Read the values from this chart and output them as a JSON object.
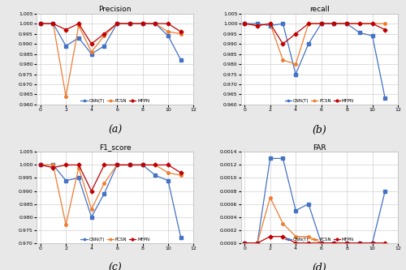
{
  "subplots": [
    {
      "title": "Precision",
      "label": "(a)",
      "ylim": [
        0.96,
        1.005
      ],
      "yticks": [
        0.96,
        0.965,
        0.97,
        0.975,
        0.98,
        0.985,
        0.99,
        0.995,
        1.0,
        1.005
      ],
      "series": {
        "CNN(T)": [
          1.0,
          1.0,
          0.989,
          0.993,
          0.985,
          0.989,
          1.0,
          1.0,
          1.0,
          1.0,
          0.994,
          0.982
        ],
        "PCSN": [
          1.0,
          1.0,
          0.964,
          0.999,
          0.986,
          0.994,
          1.0,
          1.0,
          1.0,
          1.0,
          0.996,
          0.995
        ],
        "MFPN": [
          1.0,
          1.0,
          0.997,
          1.0,
          0.99,
          0.995,
          1.0,
          1.0,
          1.0,
          1.0,
          1.0,
          0.996
        ]
      }
    },
    {
      "title": "recall",
      "label": "(b)",
      "ylim": [
        0.96,
        1.005
      ],
      "yticks": [
        0.96,
        0.965,
        0.97,
        0.975,
        0.98,
        0.985,
        0.99,
        0.995,
        1.0,
        1.005
      ],
      "series": {
        "CNN(T)": [
          1.0,
          1.0,
          0.999,
          1.0,
          0.975,
          0.99,
          1.0,
          1.0,
          1.0,
          0.9955,
          0.994,
          0.963
        ],
        "PCSN": [
          1.0,
          0.999,
          1.0,
          0.982,
          0.98,
          1.0,
          1.0,
          1.0,
          1.0,
          1.0,
          1.0,
          1.0
        ],
        "MFPN": [
          1.0,
          0.999,
          1.0,
          0.99,
          0.995,
          1.0,
          1.0,
          1.0,
          1.0,
          1.0,
          1.0,
          0.997
        ]
      }
    },
    {
      "title": "F1_score",
      "label": "(c)",
      "ylim": [
        0.97,
        1.005
      ],
      "yticks": [
        0.97,
        0.975,
        0.98,
        0.985,
        0.99,
        0.995,
        1.0,
        1.005
      ],
      "series": {
        "CNN(T)": [
          1.0,
          1.0,
          0.994,
          0.995,
          0.98,
          0.989,
          1.0,
          1.0,
          1.0,
          0.996,
          0.994,
          0.972
        ],
        "PCSN": [
          1.0,
          1.0,
          0.977,
          0.999,
          0.983,
          0.993,
          1.0,
          1.0,
          1.0,
          1.0,
          0.997,
          0.996
        ],
        "MFPN": [
          1.0,
          0.999,
          1.0,
          1.0,
          0.99,
          1.0,
          1.0,
          1.0,
          1.0,
          1.0,
          1.0,
          0.997
        ]
      }
    },
    {
      "title": "FAR",
      "label": "(d)",
      "ylim": [
        0,
        0.0014
      ],
      "yticks": [
        0,
        0.0002,
        0.0004,
        0.0006,
        0.0008,
        0.001,
        0.0012,
        0.0014
      ],
      "series": {
        "CNN(T)": [
          0,
          0,
          0.0013,
          0.0013,
          0.0005,
          0.0006,
          0.0,
          0.0,
          0.0,
          0.0,
          0.0,
          0.0008
        ],
        "PCSN": [
          0,
          0,
          0.0007,
          0.0003,
          0.0001,
          0.0001,
          0.0,
          0.0,
          0.0,
          0.0,
          0.0,
          0.0
        ],
        "MFPN": [
          0,
          0,
          0.0001,
          0.0001,
          0.0,
          0.0,
          0.0,
          0.0,
          0.0,
          0.0,
          0.0,
          0.0
        ]
      }
    }
  ],
  "x_values": [
    0,
    1,
    2,
    3,
    4,
    5,
    6,
    7,
    8,
    9,
    10,
    11
  ],
  "xlim": [
    -0.3,
    12
  ],
  "xticks": [
    0,
    2,
    4,
    6,
    8,
    10,
    12
  ],
  "colors": {
    "CNN(T)": "#4472C4",
    "PCSN": "#ED7D31",
    "MFPN": "#C00000"
  },
  "markers": {
    "CNN(T)": "s",
    "PCSN": "o",
    "MFPN": "D"
  },
  "legend_order": [
    "CNN(T)",
    "PCSN",
    "MFPN"
  ],
  "figure_bg": "#e8e8e8",
  "axes_bg": "#ffffff",
  "grid_color": "#d0d0d0",
  "border_color": "#c0c0c0"
}
